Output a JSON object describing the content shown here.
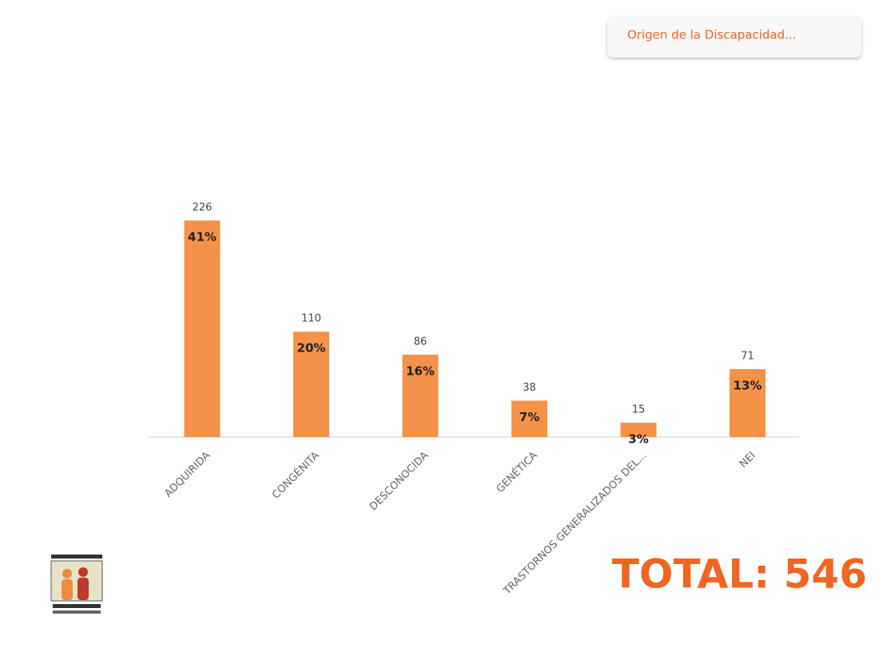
{
  "filter_label": "Origen de la Discapacidad...",
  "total_label": "TOTAL: 546",
  "chart_data": {
    "type": "bar",
    "categories": [
      "ADQUIRIDA",
      "CONGÉNITA",
      "DESCONOCIDA",
      "GENÉTICA",
      "TRASTORNOS GENERALIZADOS DEL...",
      "NEI"
    ],
    "values": [
      226,
      110,
      86,
      38,
      15,
      71
    ],
    "percent_labels": [
      "41%",
      "20%",
      "16%",
      "7%",
      "3%",
      "13%"
    ],
    "color": "#f4924a",
    "ylim": [
      0,
      226
    ]
  }
}
